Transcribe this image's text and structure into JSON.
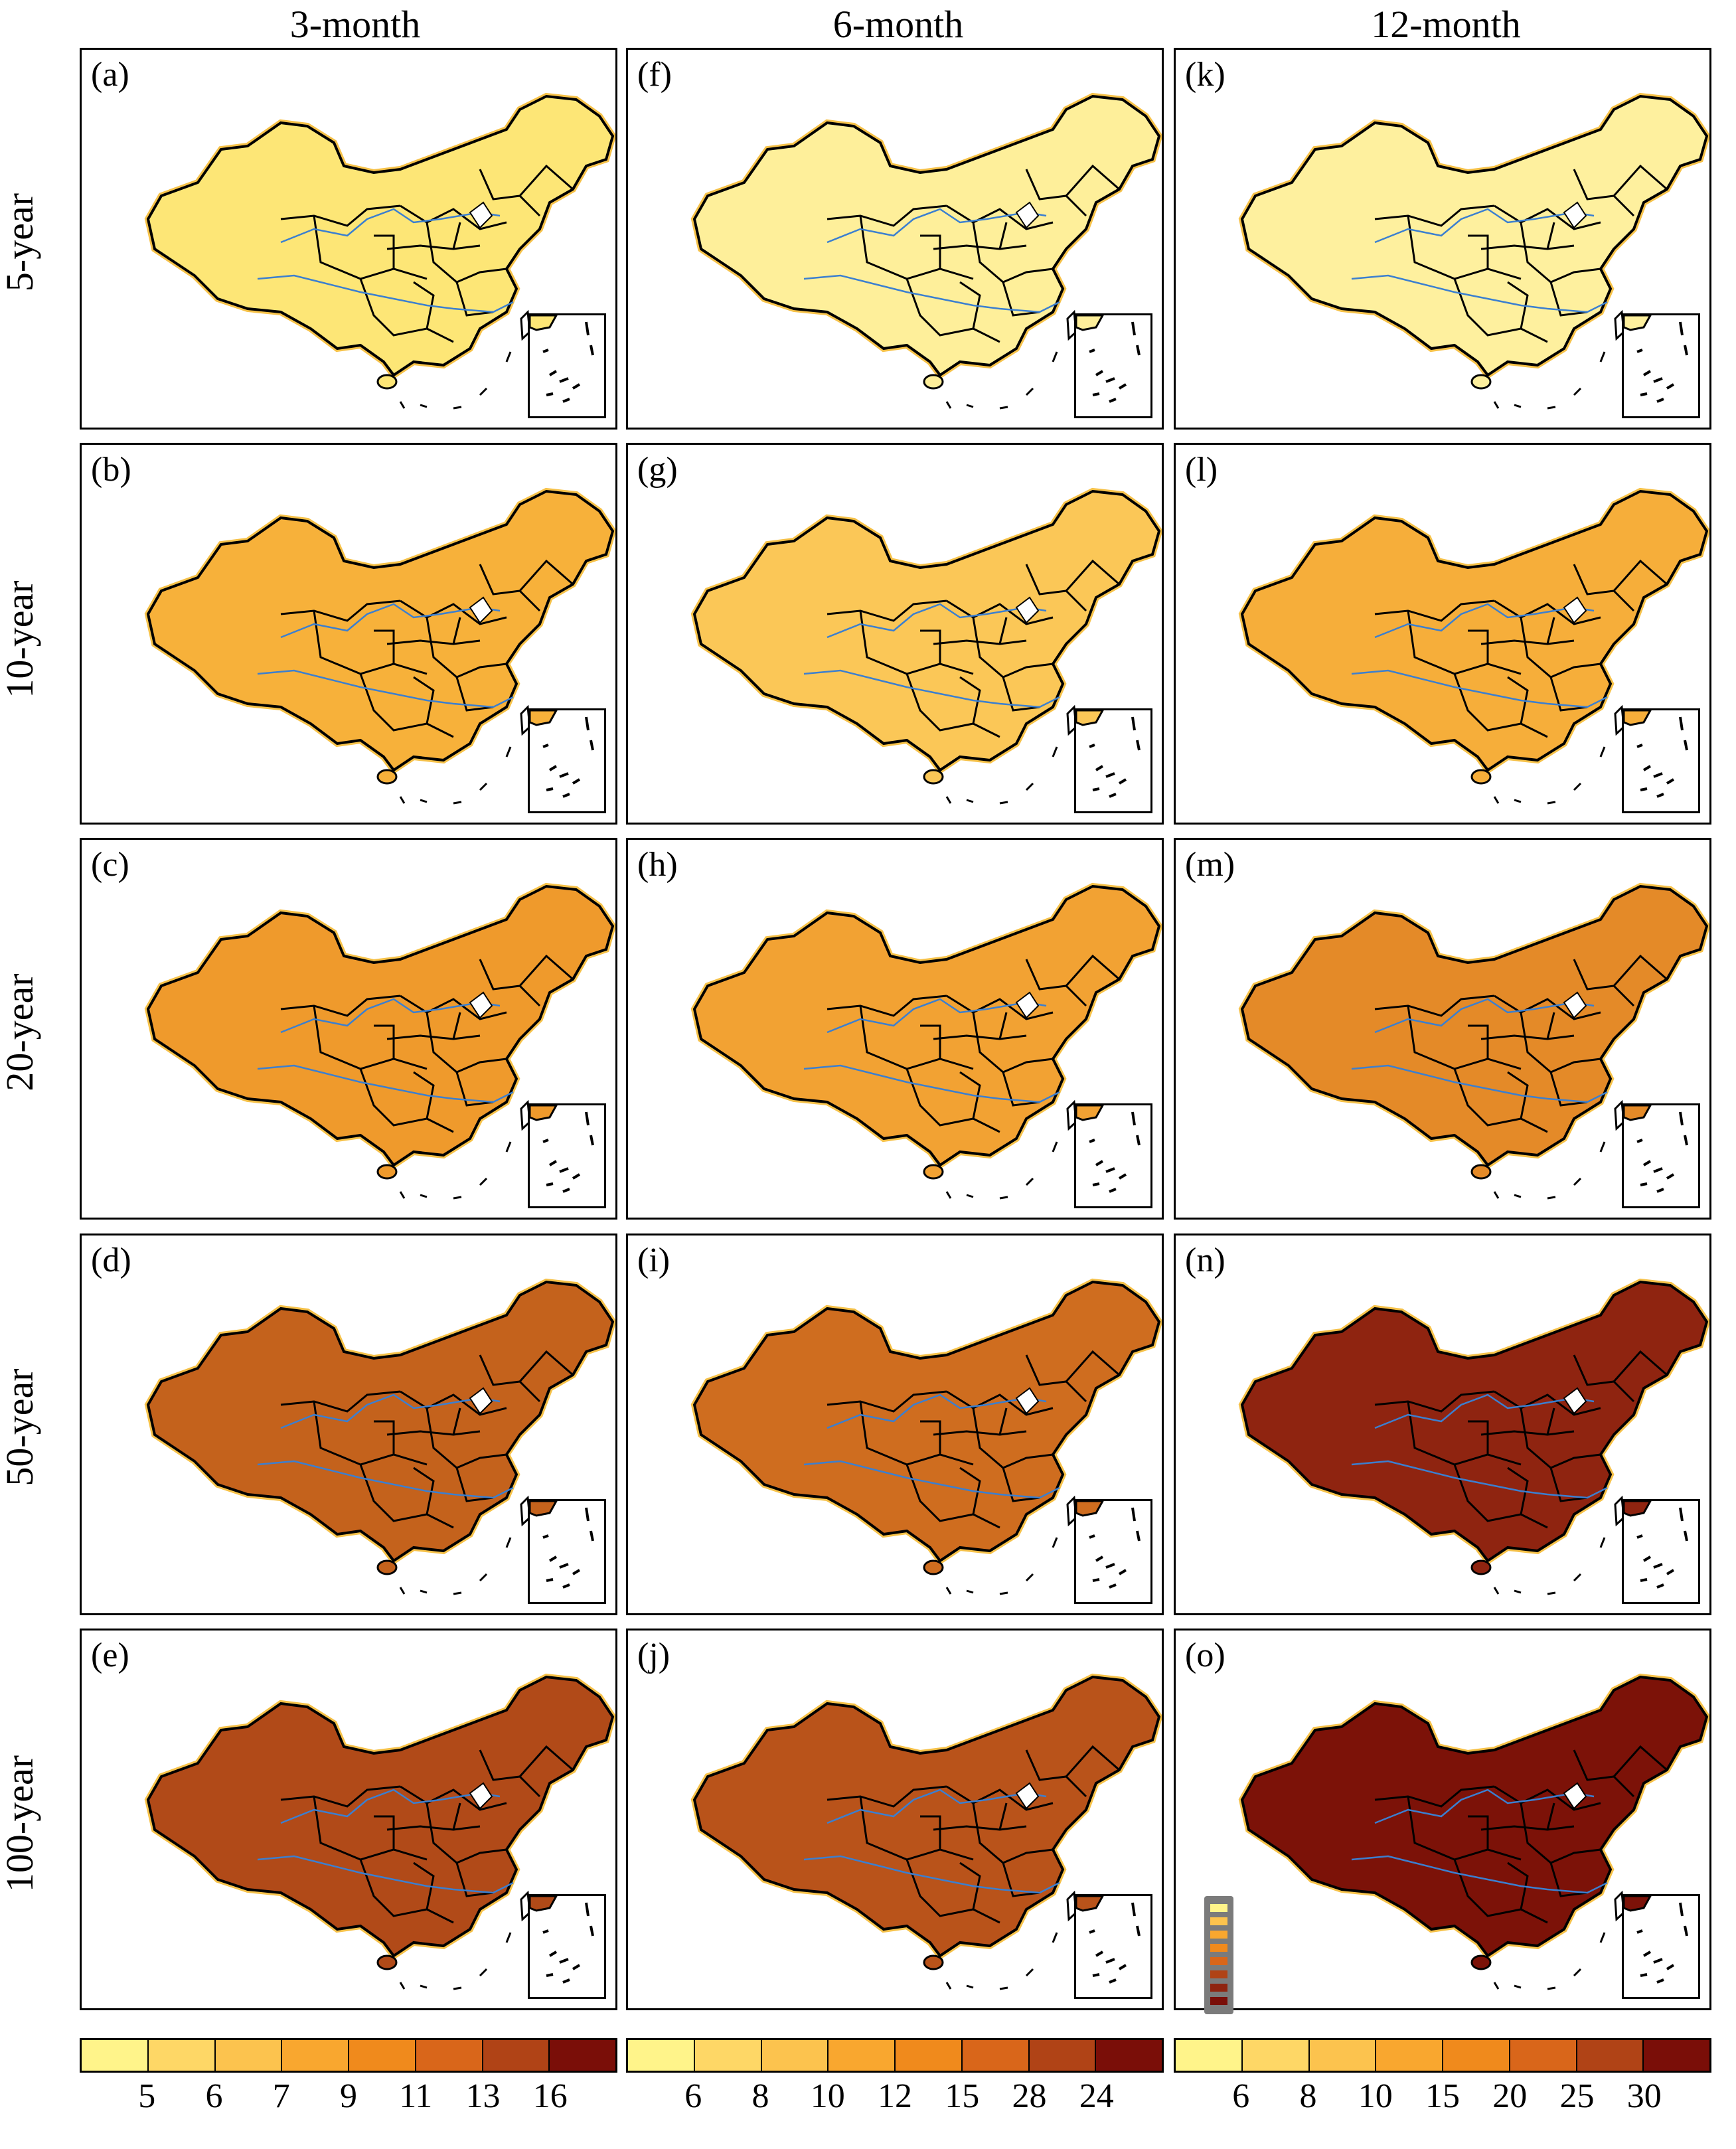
{
  "columns": [
    {
      "label": "3-month"
    },
    {
      "label": "6-month"
    },
    {
      "label": "12-month"
    }
  ],
  "rows": [
    {
      "label": "5-year"
    },
    {
      "label": "10-year"
    },
    {
      "label": "20-year"
    },
    {
      "label": "50-year"
    },
    {
      "label": "100-year"
    }
  ],
  "panels": [
    {
      "label": "(a)",
      "column": "3-month",
      "row": "5-year",
      "fill": "#fde676"
    },
    {
      "label": "(b)",
      "column": "3-month",
      "row": "10-year",
      "fill": "#f7b13a"
    },
    {
      "label": "(c)",
      "column": "3-month",
      "row": "20-year",
      "fill": "#ef9a2c"
    },
    {
      "label": "(d)",
      "column": "3-month",
      "row": "50-year",
      "fill": "#c4621c"
    },
    {
      "label": "(e)",
      "column": "3-month",
      "row": "100-year",
      "fill": "#b14a18"
    },
    {
      "label": "(f)",
      "column": "6-month",
      "row": "5-year",
      "fill": "#feef9a"
    },
    {
      "label": "(g)",
      "column": "6-month",
      "row": "10-year",
      "fill": "#fbc757"
    },
    {
      "label": "(h)",
      "column": "6-month",
      "row": "20-year",
      "fill": "#f2a233"
    },
    {
      "label": "(i)",
      "column": "6-month",
      "row": "50-year",
      "fill": "#cf6d1f"
    },
    {
      "label": "(j)",
      "column": "6-month",
      "row": "100-year",
      "fill": "#b9531a"
    },
    {
      "label": "(k)",
      "column": "12-month",
      "row": "5-year",
      "fill": "#fef09e"
    },
    {
      "label": "(l)",
      "column": "12-month",
      "row": "10-year",
      "fill": "#f6ae3a"
    },
    {
      "label": "(m)",
      "column": "12-month",
      "row": "20-year",
      "fill": "#e48a28"
    },
    {
      "label": "(n)",
      "column": "12-month",
      "row": "50-year",
      "fill": "#8f2410"
    },
    {
      "label": "(o)",
      "column": "12-month",
      "row": "100-year",
      "fill": "#7c1208"
    }
  ],
  "colorbars": [
    {
      "ticks": [
        "5",
        "6",
        "7",
        "9",
        "11",
        "13",
        "16"
      ],
      "colors": [
        "#fff48a",
        "#fed766",
        "#fcc34e",
        "#f9a72f",
        "#f08a1c",
        "#d9661a",
        "#b04316",
        "#7a0e08"
      ]
    },
    {
      "ticks": [
        "6",
        "8",
        "10",
        "12",
        "15",
        "28",
        "24"
      ],
      "colors": [
        "#fff48a",
        "#fed766",
        "#fcc34e",
        "#f9a72f",
        "#f08a1c",
        "#d9661a",
        "#b04316",
        "#7a0e08"
      ]
    },
    {
      "ticks": [
        "6",
        "8",
        "10",
        "15",
        "20",
        "25",
        "30"
      ],
      "colors": [
        "#fff48a",
        "#fed766",
        "#fcc34e",
        "#f9a72f",
        "#f08a1c",
        "#d9661a",
        "#b04316",
        "#7a0e08"
      ]
    }
  ],
  "colors": {
    "boundary": "#000000",
    "river": "#3b7fd0",
    "legend_chip_bg": "#7b7b7b"
  }
}
